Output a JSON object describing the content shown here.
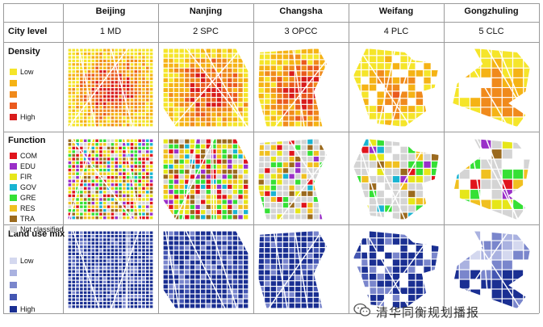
{
  "table": {
    "columns": [
      {
        "city": "Beijing",
        "level": "1 MD"
      },
      {
        "city": "Nanjing",
        "level": "2 SPC"
      },
      {
        "city": "Changsha",
        "level": "3 OPCC"
      },
      {
        "city": "Weifang",
        "level": "4 PLC"
      },
      {
        "city": "Gongzhuling",
        "level": "5 CLC"
      }
    ],
    "row_city_level": "City level",
    "row_density": "Density",
    "row_function": "Function",
    "row_landuse": "Land use mix"
  },
  "density_legend": [
    {
      "label": "Low",
      "color": "#f5e52a"
    },
    {
      "label": "",
      "color": "#f5b315"
    },
    {
      "label": "",
      "color": "#f08a1c"
    },
    {
      "label": "",
      "color": "#ea5a1e"
    },
    {
      "label": "High",
      "color": "#d91c1c"
    }
  ],
  "function_legend": [
    {
      "label": "COM",
      "color": "#e0141c"
    },
    {
      "label": "EDU",
      "color": "#9a2fc8"
    },
    {
      "label": "FIR",
      "color": "#e6e619"
    },
    {
      "label": "GOV",
      "color": "#19b4d2"
    },
    {
      "label": "GRE",
      "color": "#35e035"
    },
    {
      "label": "RES",
      "color": "#f0c020"
    },
    {
      "label": "TRA",
      "color": "#9b6a1e"
    },
    {
      "label": "Not classified",
      "color": "#d4d4d4"
    }
  ],
  "landuse_legend": [
    {
      "label": "Low",
      "color": "#d4d8ef"
    },
    {
      "label": "",
      "color": "#aab2e0"
    },
    {
      "label": "",
      "color": "#7a86cc"
    },
    {
      "label": "",
      "color": "#4456b2"
    },
    {
      "label": "High",
      "color": "#1a2f92"
    }
  ],
  "watermark": {
    "text": "清华同衡规划播报",
    "icon": "wechat-icon"
  }
}
